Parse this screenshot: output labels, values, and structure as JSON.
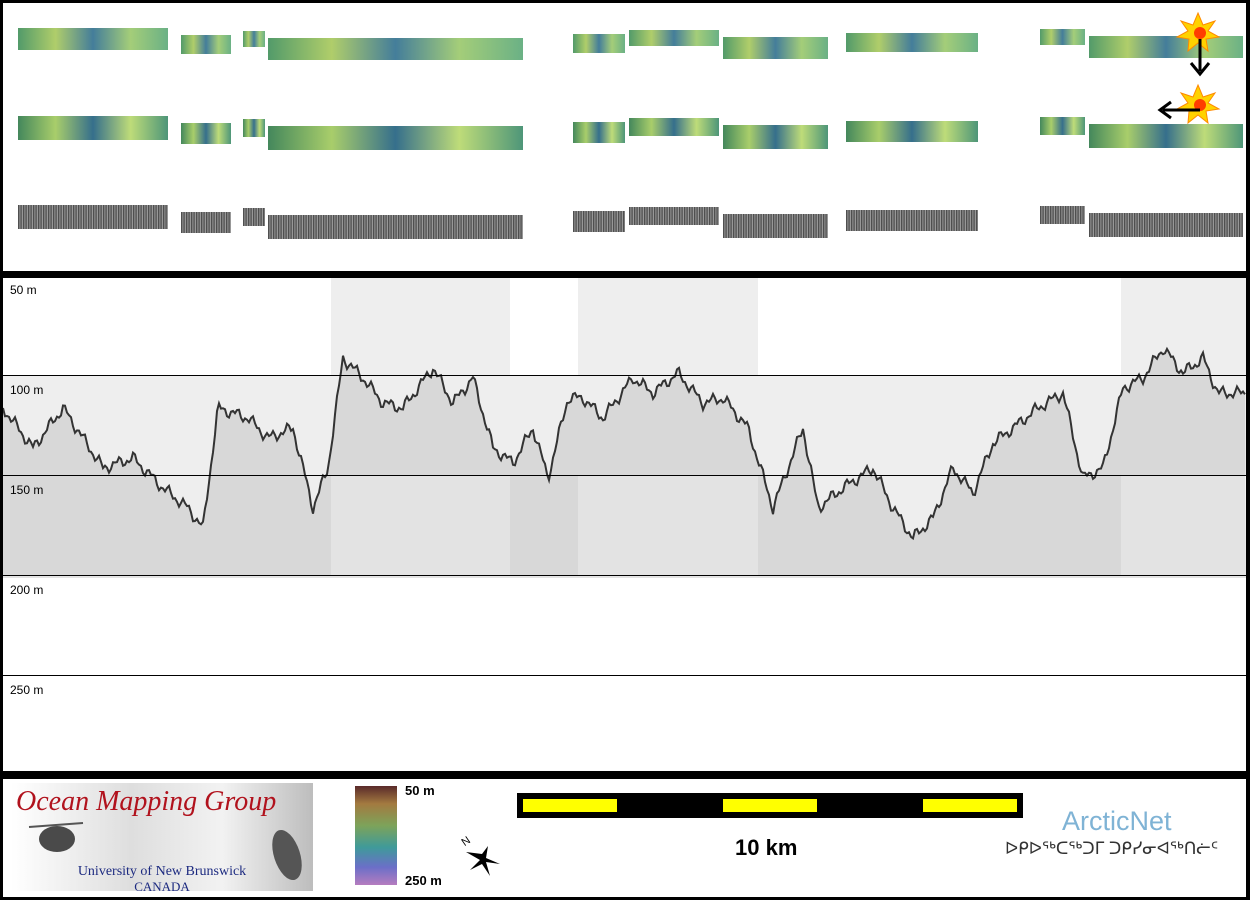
{
  "profile": {
    "depth_labels": [
      "50 m",
      "100 m",
      "150 m",
      "200 m",
      "250 m"
    ]
  },
  "legend": {
    "logo_title": "Ocean Mapping Group",
    "logo_university": "University of New Brunswick",
    "logo_country": "CANADA",
    "colorbar_top": "50 m",
    "colorbar_bottom": "250 m",
    "north_label": "N",
    "scale_label": "10 km",
    "sponsor_name": "ArcticNet",
    "sponsor_syllabics": "ᐅᑭᐅᖅᑕᖅᑐᒥ ᑐᑭᓯᓂᐊᖅᑎᓖᑦ"
  },
  "colors": {
    "frame": "#000000",
    "shaded_band": "#eeeeee",
    "scale_yellow": "#ffff00",
    "logo_red": "#b1121d",
    "logo_blue": "#1c2a80",
    "arcticnet_blue": "#7fb3d5"
  },
  "icons": [
    "star-burst-icon",
    "down-arrow-icon",
    "left-arrow-icon",
    "north-arrow-icon"
  ]
}
